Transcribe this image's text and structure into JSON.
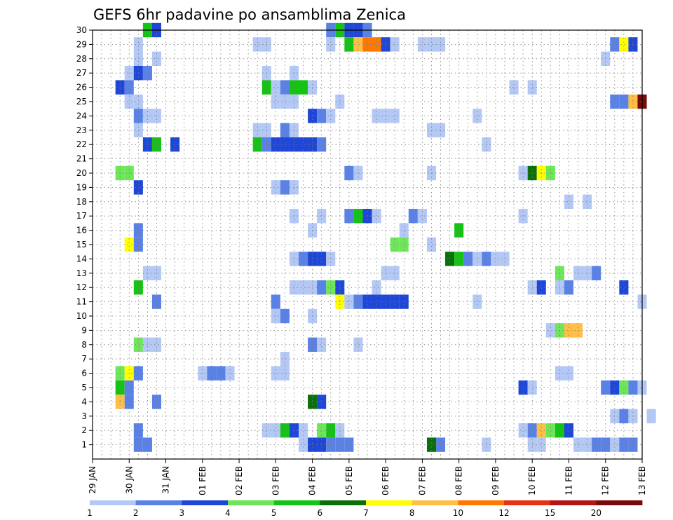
{
  "chart_data": {
    "type": "heatmap",
    "title": "GEFS 6hr padavine po ansamblima Zenica",
    "xlabel": "",
    "ylabel": "",
    "x_ticks": [
      "29 JAN",
      "30 JAN",
      "31 JAN",
      "01 FEB",
      "02 FEB",
      "03 FEB",
      "04 FEB",
      "05 FEB",
      "06 FEB",
      "07 FEB",
      "08 FEB",
      "09 FEB",
      "10 FEB",
      "11 FEB",
      "12 FEB",
      "13 FEB"
    ],
    "y_ticks": [
      "1",
      "2",
      "3",
      "4",
      "5",
      "6",
      "7",
      "8",
      "9",
      "10",
      "11",
      "12",
      "13",
      "14",
      "15",
      "16",
      "17",
      "18",
      "19",
      "20",
      "21",
      "22",
      "23",
      "24",
      "25",
      "26",
      "27",
      "28",
      "29",
      "30"
    ],
    "ylim": [
      0,
      30
    ],
    "xlim_steps": [
      0,
      60
    ],
    "x_step": "6hr",
    "grid": true,
    "legend": {
      "placement": "bottom",
      "levels": [
        "1",
        "2",
        "3",
        "4",
        "5",
        "6",
        "7",
        "8",
        "10",
        "12",
        "15",
        "20"
      ],
      "colors": [
        "#b4c8f5",
        "#5a82e6",
        "#1e46d7",
        "#6ee65a",
        "#14c314",
        "#0a700a",
        "#ffff00",
        "#ffbe46",
        "#ff7800",
        "#e63214",
        "#b41414",
        "#780a0a"
      ]
    },
    "cells": [
      [
        30,
        6,
        4
      ],
      [
        30,
        7,
        2
      ],
      [
        30,
        26,
        1
      ],
      [
        30,
        27,
        4
      ],
      [
        30,
        28,
        2
      ],
      [
        30,
        29,
        2
      ],
      [
        30,
        30,
        1
      ],
      [
        29,
        5,
        0
      ],
      [
        29,
        18,
        0
      ],
      [
        29,
        19,
        0
      ],
      [
        29,
        26,
        0
      ],
      [
        29,
        28,
        4
      ],
      [
        29,
        29,
        7
      ],
      [
        29,
        30,
        8
      ],
      [
        29,
        31,
        8
      ],
      [
        29,
        32,
        2
      ],
      [
        29,
        33,
        0
      ],
      [
        29,
        36,
        0
      ],
      [
        29,
        37,
        0
      ],
      [
        29,
        38,
        0
      ],
      [
        29,
        57,
        1
      ],
      [
        29,
        58,
        6
      ],
      [
        29,
        59,
        2
      ],
      [
        28,
        5,
        0
      ],
      [
        28,
        7,
        0
      ],
      [
        28,
        56,
        0
      ],
      [
        27,
        4,
        0
      ],
      [
        27,
        5,
        2
      ],
      [
        27,
        6,
        1
      ],
      [
        27,
        19,
        0
      ],
      [
        27,
        22,
        0
      ],
      [
        26,
        3,
        2
      ],
      [
        26,
        4,
        1
      ],
      [
        26,
        19,
        4
      ],
      [
        26,
        20,
        0
      ],
      [
        26,
        21,
        1
      ],
      [
        26,
        22,
        4
      ],
      [
        26,
        23,
        4
      ],
      [
        26,
        24,
        0
      ],
      [
        26,
        46,
        0
      ],
      [
        26,
        48,
        0
      ],
      [
        25,
        4,
        0
      ],
      [
        25,
        5,
        0
      ],
      [
        25,
        20,
        0
      ],
      [
        25,
        21,
        0
      ],
      [
        25,
        22,
        0
      ],
      [
        25,
        27,
        0
      ],
      [
        25,
        57,
        1
      ],
      [
        25,
        58,
        1
      ],
      [
        25,
        59,
        7
      ],
      [
        25,
        60,
        11
      ],
      [
        24,
        5,
        1
      ],
      [
        24,
        6,
        0
      ],
      [
        24,
        7,
        0
      ],
      [
        24,
        24,
        2
      ],
      [
        24,
        25,
        1
      ],
      [
        24,
        26,
        0
      ],
      [
        24,
        31,
        0
      ],
      [
        24,
        32,
        0
      ],
      [
        24,
        33,
        0
      ],
      [
        24,
        42,
        0
      ],
      [
        23,
        5,
        0
      ],
      [
        23,
        18,
        0
      ],
      [
        23,
        19,
        0
      ],
      [
        23,
        21,
        1
      ],
      [
        23,
        22,
        0
      ],
      [
        23,
        37,
        0
      ],
      [
        23,
        38,
        0
      ],
      [
        22,
        6,
        2
      ],
      [
        22,
        7,
        4
      ],
      [
        22,
        9,
        2
      ],
      [
        22,
        18,
        4
      ],
      [
        22,
        19,
        1
      ],
      [
        22,
        20,
        2
      ],
      [
        22,
        21,
        2
      ],
      [
        22,
        22,
        2
      ],
      [
        22,
        23,
        2
      ],
      [
        22,
        24,
        2
      ],
      [
        22,
        25,
        1
      ],
      [
        22,
        43,
        0
      ],
      [
        20,
        3,
        3
      ],
      [
        20,
        4,
        3
      ],
      [
        20,
        28,
        1
      ],
      [
        20,
        29,
        0
      ],
      [
        20,
        37,
        0
      ],
      [
        20,
        47,
        0
      ],
      [
        20,
        48,
        5
      ],
      [
        20,
        49,
        6
      ],
      [
        20,
        50,
        3
      ],
      [
        19,
        5,
        2
      ],
      [
        19,
        20,
        0
      ],
      [
        19,
        21,
        1
      ],
      [
        19,
        22,
        0
      ],
      [
        18,
        52,
        0
      ],
      [
        18,
        54,
        0
      ],
      [
        17,
        22,
        0
      ],
      [
        17,
        25,
        0
      ],
      [
        17,
        28,
        1
      ],
      [
        17,
        29,
        4
      ],
      [
        17,
        30,
        2
      ],
      [
        17,
        31,
        0
      ],
      [
        17,
        35,
        1
      ],
      [
        17,
        36,
        0
      ],
      [
        17,
        47,
        0
      ],
      [
        16,
        5,
        1
      ],
      [
        16,
        24,
        0
      ],
      [
        16,
        34,
        0
      ],
      [
        16,
        40,
        4
      ],
      [
        15,
        4,
        6
      ],
      [
        15,
        5,
        1
      ],
      [
        15,
        33,
        3
      ],
      [
        15,
        34,
        3
      ],
      [
        15,
        37,
        0
      ],
      [
        14,
        22,
        0
      ],
      [
        14,
        23,
        1
      ],
      [
        14,
        24,
        2
      ],
      [
        14,
        25,
        2
      ],
      [
        14,
        26,
        0
      ],
      [
        14,
        39,
        5
      ],
      [
        14,
        40,
        4
      ],
      [
        14,
        41,
        1
      ],
      [
        14,
        42,
        0
      ],
      [
        14,
        43,
        1
      ],
      [
        14,
        44,
        0
      ],
      [
        14,
        45,
        0
      ],
      [
        13,
        6,
        0
      ],
      [
        13,
        7,
        0
      ],
      [
        13,
        32,
        0
      ],
      [
        13,
        33,
        0
      ],
      [
        13,
        51,
        3
      ],
      [
        13,
        53,
        0
      ],
      [
        13,
        54,
        0
      ],
      [
        13,
        55,
        1
      ],
      [
        12,
        5,
        4
      ],
      [
        12,
        22,
        0
      ],
      [
        12,
        23,
        0
      ],
      [
        12,
        24,
        0
      ],
      [
        12,
        25,
        1
      ],
      [
        12,
        26,
        3
      ],
      [
        12,
        27,
        2
      ],
      [
        12,
        31,
        0
      ],
      [
        12,
        48,
        0
      ],
      [
        12,
        49,
        2
      ],
      [
        12,
        51,
        0
      ],
      [
        12,
        52,
        1
      ],
      [
        12,
        58,
        2
      ],
      [
        11,
        7,
        1
      ],
      [
        11,
        20,
        1
      ],
      [
        11,
        27,
        6
      ],
      [
        11,
        28,
        0
      ],
      [
        11,
        29,
        1
      ],
      [
        11,
        30,
        2
      ],
      [
        11,
        31,
        2
      ],
      [
        11,
        32,
        2
      ],
      [
        11,
        33,
        2
      ],
      [
        11,
        34,
        2
      ],
      [
        11,
        42,
        0
      ],
      [
        11,
        60,
        0
      ],
      [
        10,
        20,
        0
      ],
      [
        10,
        21,
        1
      ],
      [
        10,
        24,
        0
      ],
      [
        9,
        50,
        0
      ],
      [
        9,
        51,
        3
      ],
      [
        9,
        52,
        7
      ],
      [
        9,
        53,
        7
      ],
      [
        8,
        5,
        3
      ],
      [
        8,
        6,
        0
      ],
      [
        8,
        7,
        0
      ],
      [
        8,
        24,
        1
      ],
      [
        8,
        25,
        0
      ],
      [
        8,
        29,
        0
      ],
      [
        7,
        21,
        0
      ],
      [
        6,
        3,
        3
      ],
      [
        6,
        4,
        6
      ],
      [
        6,
        5,
        1
      ],
      [
        6,
        12,
        0
      ],
      [
        6,
        13,
        1
      ],
      [
        6,
        14,
        1
      ],
      [
        6,
        15,
        0
      ],
      [
        6,
        20,
        0
      ],
      [
        6,
        21,
        0
      ],
      [
        6,
        51,
        0
      ],
      [
        6,
        52,
        0
      ],
      [
        5,
        3,
        4
      ],
      [
        5,
        4,
        1
      ],
      [
        5,
        47,
        2
      ],
      [
        5,
        48,
        0
      ],
      [
        5,
        56,
        1
      ],
      [
        5,
        57,
        2
      ],
      [
        5,
        58,
        3
      ],
      [
        5,
        59,
        1
      ],
      [
        5,
        60,
        0
      ],
      [
        4,
        3,
        7
      ],
      [
        4,
        4,
        1
      ],
      [
        4,
        7,
        1
      ],
      [
        4,
        24,
        5
      ],
      [
        4,
        25,
        2
      ],
      [
        3,
        57,
        0
      ],
      [
        3,
        58,
        1
      ],
      [
        3,
        59,
        0
      ],
      [
        3,
        61,
        0
      ],
      [
        2,
        5,
        1
      ],
      [
        2,
        19,
        0
      ],
      [
        2,
        20,
        0
      ],
      [
        2,
        21,
        4
      ],
      [
        2,
        22,
        2
      ],
      [
        2,
        23,
        0
      ],
      [
        2,
        25,
        3
      ],
      [
        2,
        26,
        4
      ],
      [
        2,
        27,
        0
      ],
      [
        2,
        47,
        0
      ],
      [
        2,
        48,
        1
      ],
      [
        2,
        49,
        7
      ],
      [
        2,
        50,
        3
      ],
      [
        2,
        51,
        4
      ],
      [
        2,
        52,
        2
      ],
      [
        1,
        5,
        1
      ],
      [
        1,
        6,
        1
      ],
      [
        1,
        23,
        0
      ],
      [
        1,
        24,
        2
      ],
      [
        1,
        25,
        2
      ],
      [
        1,
        26,
        1
      ],
      [
        1,
        27,
        1
      ],
      [
        1,
        28,
        1
      ],
      [
        1,
        37,
        5
      ],
      [
        1,
        38,
        1
      ],
      [
        1,
        43,
        0
      ],
      [
        1,
        48,
        0
      ],
      [
        1,
        49,
        0
      ],
      [
        1,
        53,
        0
      ],
      [
        1,
        54,
        0
      ],
      [
        1,
        55,
        1
      ],
      [
        1,
        56,
        1
      ],
      [
        1,
        57,
        0
      ],
      [
        1,
        58,
        1
      ],
      [
        1,
        59,
        1
      ]
    ]
  }
}
